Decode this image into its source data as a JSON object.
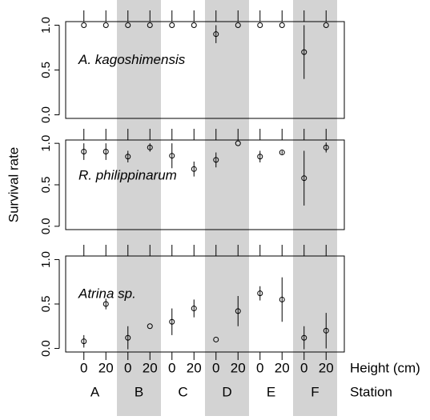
{
  "chart_data": [
    {
      "type": "errorbar",
      "title": "A. kagoshimensis",
      "ylim": [
        -0.04,
        1.04
      ],
      "yticks": [
        {
          "value": 0,
          "label": "0.0"
        },
        {
          "value": 0.5,
          "label": "0.5"
        },
        {
          "value": 1,
          "label": "1.0"
        }
      ],
      "values": [
        1.0,
        1.0,
        1.0,
        1.0,
        1.0,
        1.0,
        0.9,
        1.0,
        1.0,
        1.0,
        0.7,
        1.0
      ],
      "errors": [
        0,
        0,
        0,
        0,
        0,
        0,
        0.1,
        0,
        0,
        0,
        0.3,
        0
      ]
    },
    {
      "type": "errorbar",
      "title": "R. philippinarum",
      "ylabel": "Survival rate",
      "ylim": [
        -0.04,
        1.04
      ],
      "yticks": [
        {
          "value": 0,
          "label": "0.0"
        },
        {
          "value": 0.5,
          "label": "0.5"
        },
        {
          "value": 1,
          "label": "1.0"
        }
      ],
      "values": [
        0.9,
        0.9,
        0.84,
        0.95,
        0.85,
        0.69,
        0.8,
        1.0,
        0.84,
        0.89,
        0.58,
        0.95
      ],
      "errors": [
        0.1,
        0.1,
        0.07,
        0.05,
        0.15,
        0.09,
        0.09,
        0,
        0.07,
        0.02,
        0.33,
        0.06
      ]
    },
    {
      "type": "errorbar",
      "title": "Atrina sp.",
      "ylim": [
        -0.04,
        1.04
      ],
      "yticks": [
        {
          "value": 0,
          "label": "0.0"
        },
        {
          "value": 0.5,
          "label": "0.5"
        },
        {
          "value": 1,
          "label": "1.0"
        }
      ],
      "values": [
        0.08,
        0.5,
        0.12,
        0.25,
        0.3,
        0.45,
        0.1,
        0.42,
        0.62,
        0.55,
        0.12,
        0.2
      ],
      "errors": [
        0.07,
        0.06,
        0.13,
        0,
        0.15,
        0.1,
        0,
        0.17,
        0.08,
        0.25,
        0.13,
        0.2
      ],
      "categories": [
        "0",
        "20",
        "0",
        "20",
        "0",
        "20",
        "0",
        "20",
        "0",
        "20",
        "0",
        "20"
      ],
      "xlabel": "Height (cm)",
      "groups": [
        "A",
        "B",
        "C",
        "D",
        "E",
        "F"
      ],
      "group_label": "Station"
    }
  ]
}
